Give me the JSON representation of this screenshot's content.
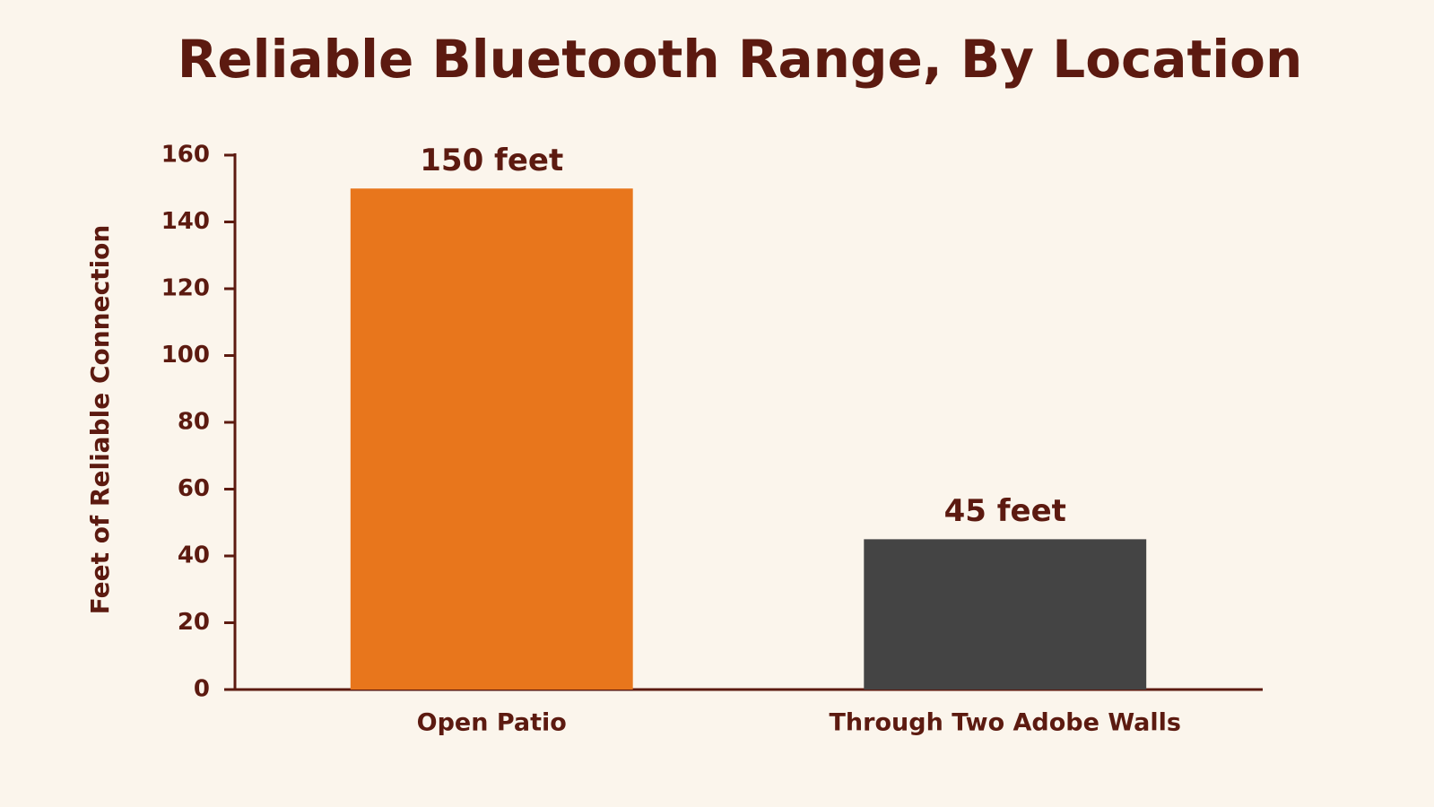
{
  "chart_data": {
    "type": "bar",
    "title": "Reliable Bluetooth Range, By Location",
    "y_label": "Feet of Reliable Connection",
    "categories": [
      "Open Patio",
      "Through Two Adobe Walls"
    ],
    "values": [
      150,
      45
    ],
    "value_labels": [
      "150 feet",
      "45 feet"
    ],
    "colors": [
      "#e8761c",
      "#444444"
    ],
    "ylim": [
      0,
      160
    ],
    "yticks": [
      0,
      20,
      40,
      60,
      80,
      100,
      120,
      140,
      160
    ],
    "grid": false
  }
}
